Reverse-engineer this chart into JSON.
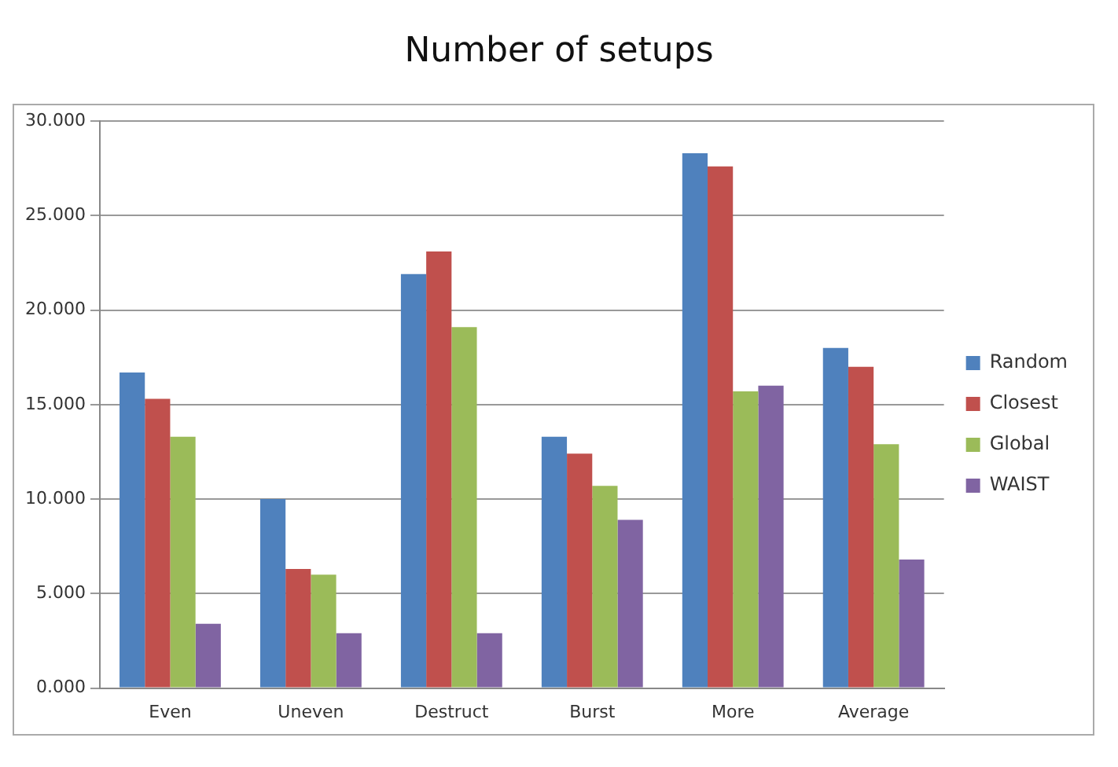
{
  "chart_data": {
    "type": "bar",
    "title": "Number of setups",
    "categories": [
      "Even",
      "Uneven",
      "Destruct",
      "Burst",
      "More",
      "Average"
    ],
    "series": [
      {
        "name": "Random",
        "color": "#4f81bd",
        "values": [
          16.7,
          10.0,
          21.9,
          13.3,
          28.3,
          18.0
        ]
      },
      {
        "name": "Closest",
        "color": "#c0504d",
        "values": [
          15.3,
          6.3,
          23.1,
          12.4,
          27.6,
          17.0
        ]
      },
      {
        "name": "Global",
        "color": "#9bbb59",
        "values": [
          13.3,
          6.0,
          19.1,
          10.7,
          15.7,
          12.9
        ]
      },
      {
        "name": "WAIST",
        "color": "#8064a2",
        "values": [
          3.4,
          2.9,
          2.9,
          8.9,
          16.0,
          6.8
        ]
      }
    ],
    "ylim": [
      0,
      30
    ],
    "yticks": [
      {
        "value": 0,
        "label": "0.000"
      },
      {
        "value": 5,
        "label": "5.000"
      },
      {
        "value": 10,
        "label": "10.000"
      },
      {
        "value": 15,
        "label": "15.000"
      },
      {
        "value": 20,
        "label": "20.000"
      },
      {
        "value": 25,
        "label": "25.000"
      },
      {
        "value": 30,
        "label": "30.000"
      }
    ],
    "grid": "y",
    "legend": "right"
  }
}
